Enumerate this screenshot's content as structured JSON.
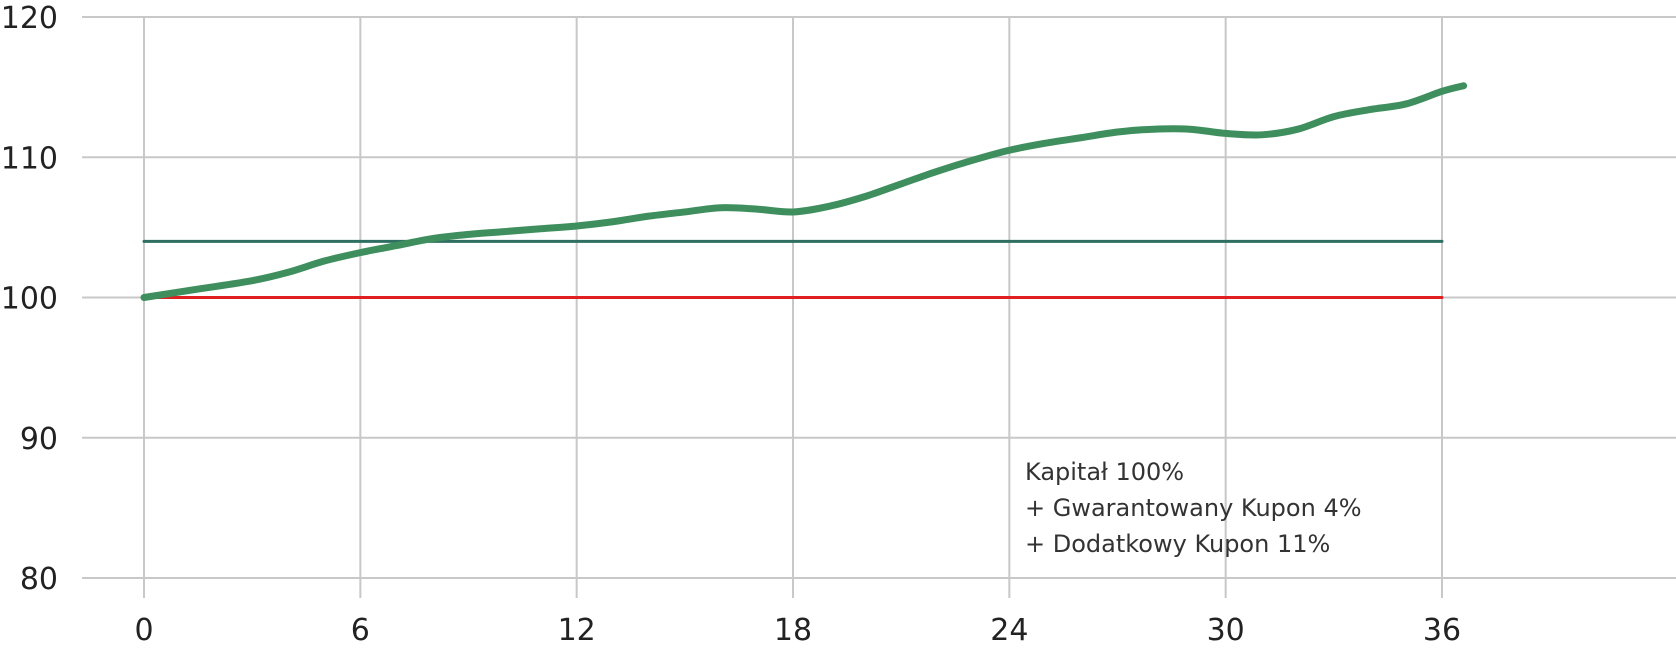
{
  "chart_data": {
    "type": "line",
    "xlim": [
      0,
      36
    ],
    "ylim": [
      80,
      120
    ],
    "x_ticks": [
      0,
      6,
      12,
      18,
      24,
      30,
      36
    ],
    "y_ticks": [
      80,
      90,
      100,
      110,
      120
    ],
    "x_tick_labels": [
      "0",
      "6",
      "12",
      "18",
      "24",
      "30",
      "36"
    ],
    "y_tick_labels": [
      "80",
      "90",
      "100",
      "110",
      "120"
    ],
    "grid": true,
    "series": [
      {
        "color": "#3f8f5e",
        "x": [
          0,
          1.5,
          3,
          4,
          5,
          6,
          7,
          8,
          9,
          10,
          11,
          12,
          13,
          14,
          15,
          16,
          17,
          18,
          19,
          20,
          21,
          22,
          23,
          24,
          25,
          26,
          27,
          28,
          29,
          30,
          31,
          32,
          33,
          34,
          35,
          36,
          36.6
        ],
        "y": [
          100,
          100.6,
          101.2,
          101.8,
          102.6,
          103.2,
          103.7,
          104.2,
          104.5,
          104.7,
          104.9,
          105.1,
          105.4,
          105.8,
          106.1,
          106.4,
          106.3,
          106.1,
          106.5,
          107.2,
          108.1,
          109.0,
          109.8,
          110.5,
          111.0,
          111.4,
          111.8,
          112.0,
          112.0,
          111.7,
          111.6,
          112.0,
          112.9,
          113.4,
          113.8,
          114.7,
          115.1
        ]
      },
      {
        "color": "#2f6f62",
        "x": [
          0,
          36
        ],
        "y": [
          104,
          104
        ]
      },
      {
        "color": "#e02020",
        "x": [
          0,
          36
        ],
        "y": [
          100,
          100
        ]
      }
    ],
    "annotation": [
      "Kapitał 100%",
      "+ Gwarantowany Kupon 4%",
      "+ Dodatkowy Kupon 11%"
    ]
  }
}
